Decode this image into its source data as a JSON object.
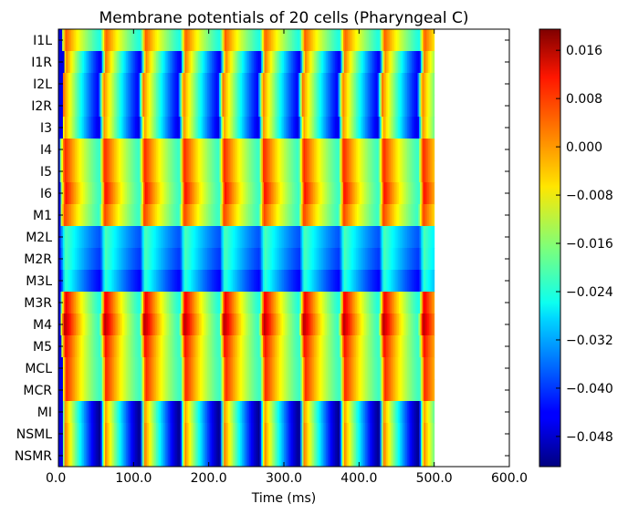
{
  "chart_data": {
    "type": "heatmap",
    "title": "Membrane potentials of 20 cells (Pharyngeal C)",
    "xlabel": "Time (ms)",
    "ylabel": "",
    "xlim": [
      0,
      600
    ],
    "x_tick_labels": [
      "0.0",
      "100.0",
      "200.0",
      "300.0",
      "400.0",
      "500.0",
      "600.0"
    ],
    "x_tick_values": [
      0,
      100,
      200,
      300,
      400,
      500,
      600
    ],
    "data_extent_ms": [
      0,
      500
    ],
    "cells": [
      "I1L",
      "I1R",
      "I2L",
      "I2R",
      "I3",
      "I4",
      "I5",
      "I6",
      "M1",
      "M2L",
      "M2R",
      "M3L",
      "M3R",
      "M4",
      "M5",
      "MCL",
      "MCR",
      "MI",
      "NSML",
      "NSMR"
    ],
    "colorbar": {
      "colormap": "jet",
      "vmin": -0.053,
      "vmax": 0.0195,
      "tick_labels": [
        "0.016",
        "0.008",
        "0.000",
        "−0.008",
        "−0.016",
        "−0.024",
        "−0.032",
        "−0.040",
        "−0.048"
      ],
      "tick_values": [
        0.016,
        0.008,
        0.0,
        -0.008,
        -0.016,
        -0.024,
        -0.032,
        -0.04,
        -0.048
      ]
    },
    "oscillation_period_ms": 53,
    "cell_profiles": [
      {
        "cell": "I1L",
        "min": -0.024,
        "max": 0.004,
        "onset_ms": 5,
        "phase_offset": 0.05
      },
      {
        "cell": "I1R",
        "min": -0.045,
        "max": 0.002,
        "onset_ms": 8,
        "phase_offset": 0.1
      },
      {
        "cell": "I2L",
        "min": -0.044,
        "max": 0.002,
        "onset_ms": 6,
        "phase_offset": 0.12
      },
      {
        "cell": "I2R",
        "min": -0.044,
        "max": 0.002,
        "onset_ms": 6,
        "phase_offset": 0.12
      },
      {
        "cell": "I3",
        "min": -0.046,
        "max": 0.0,
        "onset_ms": 6,
        "phase_offset": 0.1
      },
      {
        "cell": "I4",
        "min": -0.022,
        "max": 0.008,
        "onset_ms": 2,
        "phase_offset": 0.02
      },
      {
        "cell": "I5",
        "min": -0.022,
        "max": 0.008,
        "onset_ms": 2,
        "phase_offset": 0.02
      },
      {
        "cell": "I6",
        "min": -0.022,
        "max": 0.01,
        "onset_ms": 3,
        "phase_offset": 0.02
      },
      {
        "cell": "M1",
        "min": -0.022,
        "max": 0.006,
        "onset_ms": 3,
        "phase_offset": 0.04
      },
      {
        "cell": "M2L",
        "min": -0.038,
        "max": -0.02,
        "onset_ms": 2,
        "phase_offset": 0.0
      },
      {
        "cell": "M2R",
        "min": -0.04,
        "max": -0.02,
        "onset_ms": 2,
        "phase_offset": 0.0
      },
      {
        "cell": "M3L",
        "min": -0.044,
        "max": -0.022,
        "onset_ms": 2,
        "phase_offset": 0.0
      },
      {
        "cell": "M3R",
        "min": -0.024,
        "max": 0.012,
        "onset_ms": 3,
        "phase_offset": 0.02
      },
      {
        "cell": "M4",
        "min": -0.022,
        "max": 0.016,
        "onset_ms": 3,
        "phase_offset": 0.04
      },
      {
        "cell": "M5",
        "min": -0.022,
        "max": 0.01,
        "onset_ms": 4,
        "phase_offset": 0.04
      },
      {
        "cell": "MCL",
        "min": -0.022,
        "max": 0.008,
        "onset_ms": 6,
        "phase_offset": 0.06
      },
      {
        "cell": "MCR",
        "min": -0.022,
        "max": 0.008,
        "onset_ms": 6,
        "phase_offset": 0.06
      },
      {
        "cell": "MI",
        "min": -0.052,
        "max": 0.0,
        "onset_ms": 6,
        "phase_offset": 0.08
      },
      {
        "cell": "NSML",
        "min": -0.052,
        "max": 0.002,
        "onset_ms": 6,
        "phase_offset": 0.08
      },
      {
        "cell": "NSMR",
        "min": -0.052,
        "max": 0.002,
        "onset_ms": 6,
        "phase_offset": 0.08
      }
    ]
  }
}
